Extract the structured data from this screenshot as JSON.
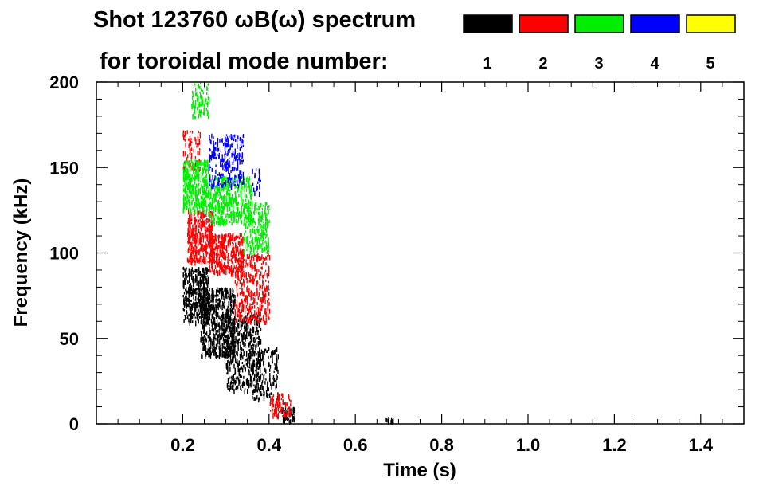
{
  "chart_data": {
    "type": "heatmap",
    "title": "Shot 123760 ωB(ω) spectrum",
    "subtitle": "for toroidal mode number:",
    "xlabel": "Time (s)",
    "ylabel": "Frequency (kHz)",
    "xlim": [
      0.0,
      1.5
    ],
    "ylim": [
      0,
      200
    ],
    "x_ticks": [
      {
        "value": 0.2,
        "label": "0.2"
      },
      {
        "value": 0.4,
        "label": "0.4"
      },
      {
        "value": 0.6,
        "label": "0.6"
      },
      {
        "value": 0.8,
        "label": "0.8"
      },
      {
        "value": 1.0,
        "label": "1.0"
      },
      {
        "value": 1.2,
        "label": "1.2"
      },
      {
        "value": 1.4,
        "label": "1.4"
      }
    ],
    "y_ticks": [
      {
        "value": 0,
        "label": "0"
      },
      {
        "value": 50,
        "label": "50"
      },
      {
        "value": 100,
        "label": "100"
      },
      {
        "value": 150,
        "label": "150"
      },
      {
        "value": 200,
        "label": "200"
      }
    ],
    "legend": [
      {
        "mode": "1",
        "color": "#000000"
      },
      {
        "mode": "2",
        "color": "#ff0000"
      },
      {
        "mode": "3",
        "color": "#00ee00"
      },
      {
        "mode": "4",
        "color": "#0000ff"
      },
      {
        "mode": "5",
        "color": "#ffff00"
      }
    ],
    "series": [
      {
        "name": "n=1",
        "color": "#000000",
        "regions": [
          {
            "t": [
              0.2,
              0.26
            ],
            "f": [
              60,
              92
            ],
            "density": 1.0
          },
          {
            "t": [
              0.24,
              0.32
            ],
            "f": [
              40,
              80
            ],
            "density": 0.9
          },
          {
            "t": [
              0.3,
              0.38
            ],
            "f": [
              20,
              65
            ],
            "density": 0.6
          },
          {
            "t": [
              0.36,
              0.42
            ],
            "f": [
              15,
              45
            ],
            "density": 0.4
          },
          {
            "t": [
              0.43,
              0.46
            ],
            "f": [
              2,
              10
            ],
            "density": 0.9
          },
          {
            "t": [
              0.67,
              0.69
            ],
            "f": [
              1,
              4
            ],
            "density": 0.8
          }
        ]
      },
      {
        "name": "n=2",
        "color": "#ff0000",
        "regions": [
          {
            "t": [
              0.21,
              0.27
            ],
            "f": [
              95,
              125
            ],
            "density": 1.0
          },
          {
            "t": [
              0.26,
              0.34
            ],
            "f": [
              88,
              112
            ],
            "density": 0.9
          },
          {
            "t": [
              0.32,
              0.4
            ],
            "f": [
              60,
              100
            ],
            "density": 0.5
          },
          {
            "t": [
              0.2,
              0.24
            ],
            "f": [
              150,
              172
            ],
            "density": 0.4
          },
          {
            "t": [
              0.4,
              0.45
            ],
            "f": [
              5,
              18
            ],
            "density": 0.7
          }
        ]
      },
      {
        "name": "n=3",
        "color": "#00ee00",
        "regions": [
          {
            "t": [
              0.2,
              0.26
            ],
            "f": [
              125,
              155
            ],
            "density": 0.9
          },
          {
            "t": [
              0.26,
              0.36
            ],
            "f": [
              118,
              145
            ],
            "density": 0.7
          },
          {
            "t": [
              0.34,
              0.4
            ],
            "f": [
              100,
              130
            ],
            "density": 0.6
          },
          {
            "t": [
              0.22,
              0.26
            ],
            "f": [
              180,
              200
            ],
            "density": 0.6
          }
        ]
      },
      {
        "name": "n=4",
        "color": "#0000ff",
        "regions": [
          {
            "t": [
              0.26,
              0.34
            ],
            "f": [
              140,
              170
            ],
            "density": 0.5
          },
          {
            "t": [
              0.36,
              0.38
            ],
            "f": [
              135,
              150
            ],
            "density": 0.3
          }
        ]
      },
      {
        "name": "n=5",
        "color": "#ffff00",
        "regions": []
      }
    ]
  }
}
